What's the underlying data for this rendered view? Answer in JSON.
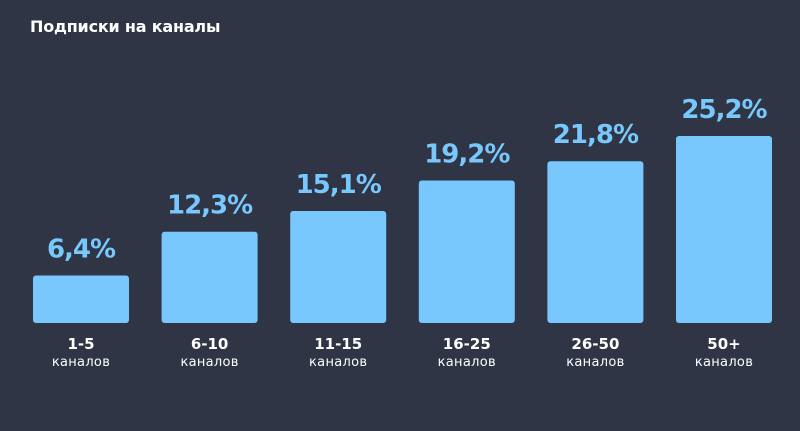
{
  "title": "Подписки на каналы",
  "colors": {
    "background": "#2f3544",
    "bar": "#78c8fd",
    "value_text": "#78c8fd",
    "label_text": "#ffffff"
  },
  "chart_data": {
    "type": "bar",
    "title": "Подписки на каналы",
    "categories": [
      "1-5",
      "6-10",
      "11-15",
      "16-25",
      "26-50",
      "50+"
    ],
    "category_unit": "каналов",
    "values": [
      6.4,
      12.3,
      15.1,
      19.2,
      21.8,
      25.2
    ],
    "value_labels": [
      "6,4%",
      "12,3%",
      "15,1%",
      "19,2%",
      "21,8%",
      "25,2%"
    ],
    "grid": false,
    "legend": "none"
  }
}
